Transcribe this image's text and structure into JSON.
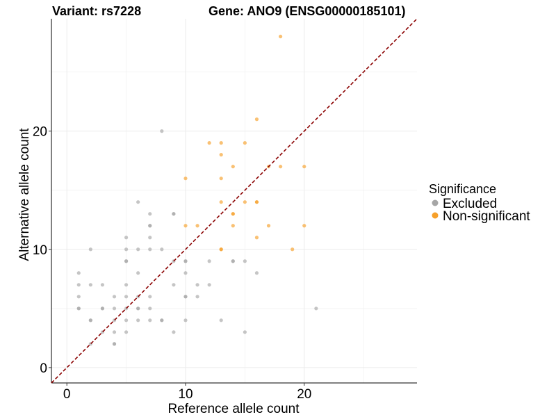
{
  "chart_data": {
    "type": "scatter",
    "title_left": "Variant: rs7228",
    "title_right": "Gene: ANO9 (ENSG00000185101)",
    "xlabel": "Reference allele count",
    "ylabel": "Alternative allele count",
    "xlim": [
      -1.3,
      29.5
    ],
    "ylim": [
      -1.3,
      29.5
    ],
    "xticks": [
      0,
      10,
      20
    ],
    "yticks": [
      0,
      10,
      20
    ],
    "minor_grid": [
      5,
      15,
      25
    ],
    "grid": true,
    "reference_line": "y = x (dashed)",
    "legend": {
      "title": "Significance",
      "position": "right",
      "entries": [
        {
          "label": "Excluded",
          "color": "#a6a6a6"
        },
        {
          "label": "Non-significant",
          "color": "#f6a02a"
        }
      ]
    },
    "series": [
      {
        "name": "Excluded",
        "color": "#a6a6a6",
        "points": [
          [
            1,
            8
          ],
          [
            1,
            7
          ],
          [
            1,
            6
          ],
          [
            1,
            5
          ],
          [
            1,
            5
          ],
          [
            2,
            10
          ],
          [
            2,
            7
          ],
          [
            2,
            4
          ],
          [
            2,
            4
          ],
          [
            2,
            2
          ],
          [
            3,
            7
          ],
          [
            3,
            5
          ],
          [
            3,
            5
          ],
          [
            3,
            3
          ],
          [
            4,
            6
          ],
          [
            4,
            5
          ],
          [
            4,
            4
          ],
          [
            4,
            3
          ],
          [
            4,
            2
          ],
          [
            4,
            2
          ],
          [
            5,
            11
          ],
          [
            5,
            10
          ],
          [
            5,
            9
          ],
          [
            5,
            9
          ],
          [
            5,
            7
          ],
          [
            5,
            6
          ],
          [
            5,
            5
          ],
          [
            5,
            4
          ],
          [
            5,
            3
          ],
          [
            6,
            14
          ],
          [
            6,
            10
          ],
          [
            6,
            8
          ],
          [
            6,
            6
          ],
          [
            6,
            5
          ],
          [
            6,
            5
          ],
          [
            6,
            4
          ],
          [
            7,
            13
          ],
          [
            7,
            12
          ],
          [
            7,
            12
          ],
          [
            7,
            11
          ],
          [
            7,
            10
          ],
          [
            7,
            6
          ],
          [
            7,
            5
          ],
          [
            7,
            4
          ],
          [
            8,
            20
          ],
          [
            8,
            10
          ],
          [
            8,
            4
          ],
          [
            8,
            4
          ],
          [
            9,
            13
          ],
          [
            9,
            13
          ],
          [
            9,
            9
          ],
          [
            9,
            7
          ],
          [
            9,
            3
          ],
          [
            10,
            9
          ],
          [
            10,
            9
          ],
          [
            10,
            8
          ],
          [
            10,
            6
          ],
          [
            10,
            6
          ],
          [
            10,
            4
          ],
          [
            11,
            7
          ],
          [
            11,
            6
          ],
          [
            12,
            9
          ],
          [
            12,
            7
          ],
          [
            13,
            4
          ],
          [
            14,
            9
          ],
          [
            14,
            9
          ],
          [
            15,
            9
          ],
          [
            15,
            3
          ],
          [
            16,
            8
          ],
          [
            21,
            5
          ]
        ]
      },
      {
        "name": "Non-significant",
        "color": "#f6a02a",
        "points": [
          [
            10,
            16
          ],
          [
            10,
            12
          ],
          [
            11,
            12
          ],
          [
            12,
            19
          ],
          [
            13,
            19
          ],
          [
            13,
            18
          ],
          [
            13,
            16
          ],
          [
            13,
            14
          ],
          [
            13,
            10
          ],
          [
            13,
            10
          ],
          [
            14,
            17
          ],
          [
            14,
            13
          ],
          [
            14,
            13
          ],
          [
            14,
            12
          ],
          [
            15,
            19
          ],
          [
            15,
            14
          ],
          [
            16,
            21
          ],
          [
            16,
            14
          ],
          [
            16,
            14
          ],
          [
            16,
            11
          ],
          [
            17,
            17
          ],
          [
            17,
            12
          ],
          [
            18,
            28
          ],
          [
            18,
            17
          ],
          [
            19,
            10
          ],
          [
            20,
            17
          ],
          [
            20,
            12
          ]
        ]
      }
    ]
  }
}
